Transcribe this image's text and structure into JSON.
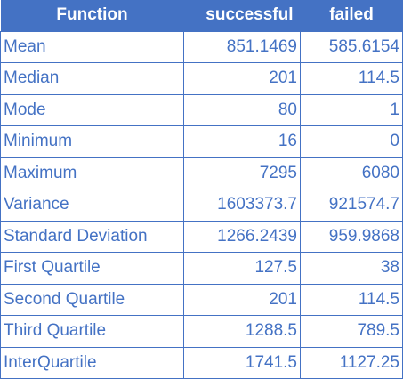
{
  "table": {
    "headers": [
      "Function",
      "successful",
      "failed"
    ],
    "rows": [
      {
        "function": "Mean",
        "successful": "851.1469",
        "failed": "585.6154"
      },
      {
        "function": "Median",
        "successful": "201",
        "failed": "114.5"
      },
      {
        "function": "Mode",
        "successful": "80",
        "failed": "1"
      },
      {
        "function": "Minimum",
        "successful": "16",
        "failed": "0"
      },
      {
        "function": "Maximum",
        "successful": "7295",
        "failed": "6080"
      },
      {
        "function": "Variance",
        "successful": "1603373.7",
        "failed": "921574.7"
      },
      {
        "function": "Standard Deviation",
        "successful": "1266.2439",
        "failed": "959.9868"
      },
      {
        "function": "First Quartile",
        "successful": "127.5",
        "failed": "38"
      },
      {
        "function": "Second Quartile",
        "successful": "201",
        "failed": "114.5"
      },
      {
        "function": "Third Quartile",
        "successful": "1288.5",
        "failed": "789.5"
      },
      {
        "function": "InterQuartile",
        "successful": "1741.5",
        "failed": "1127.25"
      }
    ]
  },
  "colors": {
    "header_bg": "#4472c4",
    "header_text": "#ffffff",
    "cell_text": "#4472c4",
    "border": "#4472c4"
  }
}
